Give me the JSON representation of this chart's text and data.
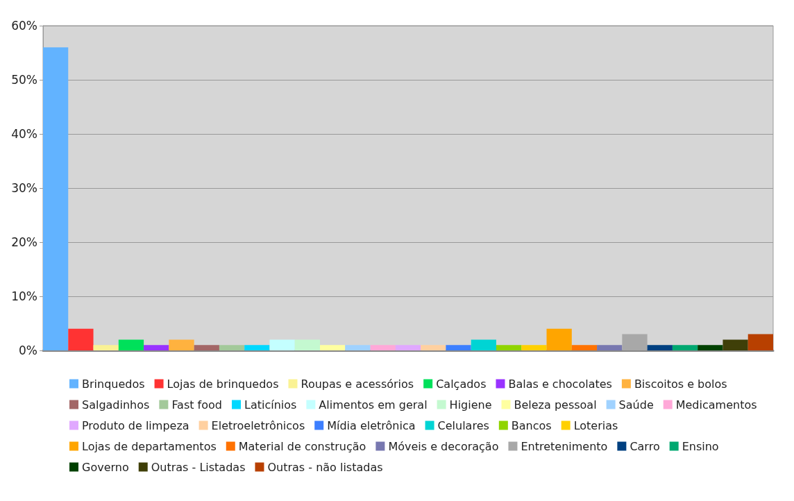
{
  "chart_data": {
    "type": "bar",
    "stacked": true,
    "grid": "y",
    "legend": "bottom",
    "categories": [
      null,
      null,
      null,
      null,
      null,
      null,
      null,
      null,
      null,
      null,
      null,
      null,
      null,
      null,
      null,
      null,
      null,
      null,
      null,
      null,
      null,
      null,
      null,
      null,
      null,
      null,
      null,
      null,
      null
    ],
    "ylim": [
      0,
      60
    ],
    "yticks": [
      {
        "value": 0,
        "label": "0%"
      },
      {
        "value": 10,
        "label": "10%"
      },
      {
        "value": 20,
        "label": "20%"
      },
      {
        "value": 30,
        "label": "30%"
      },
      {
        "value": 40,
        "label": "40%"
      },
      {
        "value": 50,
        "label": "50%"
      },
      {
        "value": 60,
        "label": "60%"
      }
    ],
    "series": [
      {
        "name": "Brinquedos",
        "color": "#62b3ff",
        "values": [
          56,
          null,
          null,
          null,
          null,
          null,
          null,
          null,
          null,
          null,
          null,
          null,
          null,
          null,
          null,
          null,
          null,
          null,
          null,
          null,
          null,
          null,
          null,
          null,
          null,
          null,
          null,
          null,
          null
        ]
      },
      {
        "name": "Lojas de brinquedos",
        "color": "#ff3333",
        "values": [
          null,
          4,
          null,
          null,
          null,
          null,
          null,
          null,
          null,
          null,
          null,
          null,
          null,
          null,
          null,
          null,
          null,
          null,
          null,
          null,
          null,
          null,
          null,
          null,
          null,
          null,
          null,
          null,
          null
        ]
      },
      {
        "name": "Roupas e acessórios",
        "color": "#faf294",
        "values": [
          null,
          null,
          1,
          null,
          null,
          null,
          null,
          null,
          null,
          null,
          null,
          null,
          null,
          null,
          null,
          null,
          null,
          null,
          null,
          null,
          null,
          null,
          null,
          null,
          null,
          null,
          null,
          null,
          null
        ]
      },
      {
        "name": "Calçados",
        "color": "#00e05a",
        "values": [
          null,
          null,
          null,
          2,
          null,
          null,
          null,
          null,
          null,
          null,
          null,
          null,
          null,
          null,
          null,
          null,
          null,
          null,
          null,
          null,
          null,
          null,
          null,
          null,
          null,
          null,
          null,
          null,
          null
        ]
      },
      {
        "name": "Balas e chocolates",
        "color": "#9933ff",
        "values": [
          null,
          null,
          null,
          null,
          1,
          null,
          null,
          null,
          null,
          null,
          null,
          null,
          null,
          null,
          null,
          null,
          null,
          null,
          null,
          null,
          null,
          null,
          null,
          null,
          null,
          null,
          null,
          null,
          null
        ]
      },
      {
        "name": "Biscoitos e bolos",
        "color": "#ffb23f",
        "values": [
          null,
          null,
          null,
          null,
          null,
          2,
          null,
          null,
          null,
          null,
          null,
          null,
          null,
          null,
          null,
          null,
          null,
          null,
          null,
          null,
          null,
          null,
          null,
          null,
          null,
          null,
          null,
          null,
          null
        ]
      },
      {
        "name": "Salgadinhos",
        "color": "#a36666",
        "values": [
          null,
          null,
          null,
          null,
          null,
          null,
          1,
          null,
          null,
          null,
          null,
          null,
          null,
          null,
          null,
          null,
          null,
          null,
          null,
          null,
          null,
          null,
          null,
          null,
          null,
          null,
          null,
          null,
          null
        ]
      },
      {
        "name": "Fast food",
        "color": "#a3c99a",
        "values": [
          null,
          null,
          null,
          null,
          null,
          null,
          null,
          1,
          null,
          null,
          null,
          null,
          null,
          null,
          null,
          null,
          null,
          null,
          null,
          null,
          null,
          null,
          null,
          null,
          null,
          null,
          null,
          null,
          null
        ]
      },
      {
        "name": "Laticínios",
        "color": "#00d8ff",
        "values": [
          null,
          null,
          null,
          null,
          null,
          null,
          null,
          null,
          1,
          null,
          null,
          null,
          null,
          null,
          null,
          null,
          null,
          null,
          null,
          null,
          null,
          null,
          null,
          null,
          null,
          null,
          null,
          null,
          null
        ]
      },
      {
        "name": "Alimentos em geral",
        "color": "#c4ffff",
        "values": [
          null,
          null,
          null,
          null,
          null,
          null,
          null,
          null,
          null,
          2,
          null,
          null,
          null,
          null,
          null,
          null,
          null,
          null,
          null,
          null,
          null,
          null,
          null,
          null,
          null,
          null,
          null,
          null,
          null
        ]
      },
      {
        "name": "Higiene",
        "color": "#c4f9d0",
        "values": [
          null,
          null,
          null,
          null,
          null,
          null,
          null,
          null,
          null,
          null,
          2,
          null,
          null,
          null,
          null,
          null,
          null,
          null,
          null,
          null,
          null,
          null,
          null,
          null,
          null,
          null,
          null,
          null,
          null
        ]
      },
      {
        "name": "Beleza pessoal",
        "color": "#ffffa0",
        "values": [
          null,
          null,
          null,
          null,
          null,
          null,
          null,
          null,
          null,
          null,
          null,
          1,
          null,
          null,
          null,
          null,
          null,
          null,
          null,
          null,
          null,
          null,
          null,
          null,
          null,
          null,
          null,
          null,
          null
        ]
      },
      {
        "name": "Saúde",
        "color": "#a0d2ff",
        "values": [
          null,
          null,
          null,
          null,
          null,
          null,
          null,
          null,
          null,
          null,
          null,
          null,
          1,
          null,
          null,
          null,
          null,
          null,
          null,
          null,
          null,
          null,
          null,
          null,
          null,
          null,
          null,
          null,
          null
        ]
      },
      {
        "name": "Medicamentos",
        "color": "#ffa8d8",
        "values": [
          null,
          null,
          null,
          null,
          null,
          null,
          null,
          null,
          null,
          null,
          null,
          null,
          null,
          1,
          null,
          null,
          null,
          null,
          null,
          null,
          null,
          null,
          null,
          null,
          null,
          null,
          null,
          null,
          null
        ]
      },
      {
        "name": "Produto de limpeza",
        "color": "#e0a8ff",
        "values": [
          null,
          null,
          null,
          null,
          null,
          null,
          null,
          null,
          null,
          null,
          null,
          null,
          null,
          null,
          1,
          null,
          null,
          null,
          null,
          null,
          null,
          null,
          null,
          null,
          null,
          null,
          null,
          null,
          null
        ]
      },
      {
        "name": "Eletroeletrônicos",
        "color": "#ffd0a0",
        "values": [
          null,
          null,
          null,
          null,
          null,
          null,
          null,
          null,
          null,
          null,
          null,
          null,
          null,
          null,
          null,
          1,
          null,
          null,
          null,
          null,
          null,
          null,
          null,
          null,
          null,
          null,
          null,
          null,
          null
        ]
      },
      {
        "name": "Mídia eletrônica",
        "color": "#3d7fff",
        "values": [
          null,
          null,
          null,
          null,
          null,
          null,
          null,
          null,
          null,
          null,
          null,
          null,
          null,
          null,
          null,
          null,
          1,
          null,
          null,
          null,
          null,
          null,
          null,
          null,
          null,
          null,
          null,
          null,
          null
        ]
      },
      {
        "name": "Celulares",
        "color": "#00d4d4",
        "values": [
          null,
          null,
          null,
          null,
          null,
          null,
          null,
          null,
          null,
          null,
          null,
          null,
          null,
          null,
          null,
          null,
          null,
          2,
          null,
          null,
          null,
          null,
          null,
          null,
          null,
          null,
          null,
          null,
          null
        ]
      },
      {
        "name": "Bancos",
        "color": "#90d400",
        "values": [
          null,
          null,
          null,
          null,
          null,
          null,
          null,
          null,
          null,
          null,
          null,
          null,
          null,
          null,
          null,
          null,
          null,
          null,
          1,
          null,
          null,
          null,
          null,
          null,
          null,
          null,
          null,
          null,
          null
        ]
      },
      {
        "name": "Loterias",
        "color": "#ffd000",
        "values": [
          null,
          null,
          null,
          null,
          null,
          null,
          null,
          null,
          null,
          null,
          null,
          null,
          null,
          null,
          null,
          null,
          null,
          null,
          null,
          1,
          null,
          null,
          null,
          null,
          null,
          null,
          null,
          null,
          null
        ]
      },
      {
        "name": "Lojas de departamentos",
        "color": "#ffa500",
        "values": [
          null,
          null,
          null,
          null,
          null,
          null,
          null,
          null,
          null,
          null,
          null,
          null,
          null,
          null,
          null,
          null,
          null,
          null,
          null,
          null,
          4,
          null,
          null,
          null,
          null,
          null,
          null,
          null,
          null
        ]
      },
      {
        "name": "Material de construção",
        "color": "#ff7200",
        "values": [
          null,
          null,
          null,
          null,
          null,
          null,
          null,
          null,
          null,
          null,
          null,
          null,
          null,
          null,
          null,
          null,
          null,
          null,
          null,
          null,
          null,
          1,
          null,
          null,
          null,
          null,
          null,
          null,
          null
        ]
      },
      {
        "name": "Móveis e decoração",
        "color": "#7878b0",
        "values": [
          null,
          null,
          null,
          null,
          null,
          null,
          null,
          null,
          null,
          null,
          null,
          null,
          null,
          null,
          null,
          null,
          null,
          null,
          null,
          null,
          null,
          null,
          1,
          null,
          null,
          null,
          null,
          null,
          null
        ]
      },
      {
        "name": "Entretenimento",
        "color": "#a8a8a8",
        "values": [
          null,
          null,
          null,
          null,
          null,
          null,
          null,
          null,
          null,
          null,
          null,
          null,
          null,
          null,
          null,
          null,
          null,
          null,
          null,
          null,
          null,
          null,
          null,
          3,
          null,
          null,
          null,
          null,
          null
        ]
      },
      {
        "name": "Carro",
        "color": "#004080",
        "values": [
          null,
          null,
          null,
          null,
          null,
          null,
          null,
          null,
          null,
          null,
          null,
          null,
          null,
          null,
          null,
          null,
          null,
          null,
          null,
          null,
          null,
          null,
          null,
          null,
          1,
          null,
          null,
          null,
          null
        ]
      },
      {
        "name": "Ensino",
        "color": "#00a870",
        "values": [
          null,
          null,
          null,
          null,
          null,
          null,
          null,
          null,
          null,
          null,
          null,
          null,
          null,
          null,
          null,
          null,
          null,
          null,
          null,
          null,
          null,
          null,
          null,
          null,
          null,
          1,
          null,
          null,
          null
        ]
      },
      {
        "name": "Governo",
        "color": "#004000",
        "values": [
          null,
          null,
          null,
          null,
          null,
          null,
          null,
          null,
          null,
          null,
          null,
          null,
          null,
          null,
          null,
          null,
          null,
          null,
          null,
          null,
          null,
          null,
          null,
          null,
          null,
          null,
          1,
          null,
          null
        ]
      },
      {
        "name": "Outras - Listadas",
        "color": "#3f3f08",
        "values": [
          null,
          null,
          null,
          null,
          null,
          null,
          null,
          null,
          null,
          null,
          null,
          null,
          null,
          null,
          null,
          null,
          null,
          null,
          null,
          null,
          null,
          null,
          null,
          null,
          null,
          null,
          null,
          2,
          null
        ]
      },
      {
        "name": "Outras - não listadas",
        "color": "#b84000",
        "values": [
          null,
          null,
          null,
          null,
          null,
          null,
          null,
          null,
          null,
          null,
          null,
          null,
          null,
          null,
          null,
          null,
          null,
          null,
          null,
          null,
          null,
          null,
          null,
          null,
          null,
          null,
          null,
          null,
          3
        ]
      }
    ]
  }
}
